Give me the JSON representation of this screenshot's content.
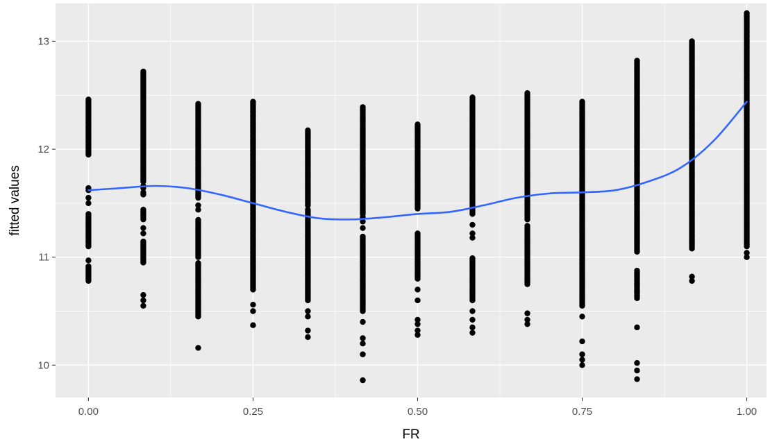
{
  "chart_data": {
    "type": "scatter",
    "xlabel": "FR",
    "ylabel": "fitted values",
    "xlim": [
      -0.05,
      1.03
    ],
    "ylim": [
      9.7,
      13.35
    ],
    "x_ticks": [
      0.0,
      0.25,
      0.5,
      0.75,
      1.0
    ],
    "x_tick_labels": [
      "0.00",
      "0.25",
      "0.50",
      "0.75",
      "1.00"
    ],
    "y_ticks": [
      10,
      11,
      12,
      13
    ],
    "y_tick_labels": [
      "10",
      "11",
      "12",
      "13"
    ],
    "grid": true,
    "background": "#ebebeb",
    "gridline_color": "#ffffff",
    "point_color": "#000000",
    "smooth_color": "#3366ff",
    "columns": [
      {
        "x": 0.0,
        "dense": [
          [
            10.78,
            10.92
          ],
          [
            11.1,
            11.4
          ],
          [
            11.95,
            12.47
          ]
        ],
        "sparse": [
          10.97,
          11.5,
          11.55,
          11.62,
          11.64
        ]
      },
      {
        "x": 0.0833,
        "dense": [
          [
            10.95,
            11.15
          ],
          [
            11.35,
            11.45
          ],
          [
            11.7,
            12.72
          ]
        ],
        "sparse": [
          10.55,
          10.6,
          10.65,
          11.22,
          11.27,
          11.58,
          11.6,
          11.64,
          11.66
        ]
      },
      {
        "x": 0.1667,
        "dense": [
          [
            10.45,
            10.95
          ],
          [
            11.0,
            11.35
          ],
          [
            11.55,
            12.42
          ]
        ],
        "sparse": [
          10.16,
          10.5,
          11.44,
          11.48
        ]
      },
      {
        "x": 0.25,
        "dense": [
          [
            10.7,
            12.45
          ]
        ],
        "sparse": [
          10.37,
          10.5,
          10.56
        ]
      },
      {
        "x": 0.3333,
        "dense": [
          [
            10.6,
            11.45
          ],
          [
            11.5,
            12.18
          ]
        ],
        "sparse": [
          10.26,
          10.32,
          10.45,
          10.5,
          11.48
        ]
      },
      {
        "x": 0.4167,
        "dense": [
          [
            10.5,
            11.2
          ],
          [
            11.4,
            12.4
          ]
        ],
        "sparse": [
          9.86,
          10.1,
          10.2,
          10.25,
          10.4,
          11.27,
          11.33,
          11.37
        ]
      },
      {
        "x": 0.5,
        "dense": [
          [
            10.8,
            11.22
          ],
          [
            11.45,
            12.24
          ]
        ],
        "sparse": [
          10.28,
          10.32,
          10.38,
          10.42,
          10.6,
          10.7
        ]
      },
      {
        "x": 0.5833,
        "dense": [
          [
            10.6,
            11.0
          ],
          [
            11.4,
            12.48
          ]
        ],
        "sparse": [
          10.3,
          10.35,
          10.42,
          10.5,
          11.18,
          11.22,
          11.3
        ]
      },
      {
        "x": 0.6667,
        "dense": [
          [
            10.75,
            11.3
          ],
          [
            11.35,
            12.53
          ]
        ],
        "sparse": [
          10.38,
          10.42,
          10.48
        ]
      },
      {
        "x": 0.75,
        "dense": [
          [
            10.55,
            12.45
          ]
        ],
        "sparse": [
          10.0,
          10.05,
          10.1,
          10.22,
          10.45
        ]
      },
      {
        "x": 0.8333,
        "dense": [
          [
            10.62,
            10.88
          ],
          [
            11.05,
            12.82
          ]
        ],
        "sparse": [
          9.87,
          9.95,
          10.02,
          10.35,
          10.68,
          10.75
        ]
      },
      {
        "x": 0.9167,
        "dense": [
          [
            11.08,
            13.0
          ]
        ],
        "sparse": [
          10.78,
          10.82
        ]
      },
      {
        "x": 1.0,
        "dense": [
          [
            11.1,
            13.27
          ]
        ],
        "sparse": [
          11.0,
          11.04
        ]
      }
    ],
    "smooth": {
      "name": "",
      "x": [
        0.0,
        0.05,
        0.1,
        0.15,
        0.2,
        0.25,
        0.3,
        0.35,
        0.4,
        0.45,
        0.5,
        0.55,
        0.6,
        0.65,
        0.7,
        0.75,
        0.8,
        0.85,
        0.9,
        0.95,
        1.0
      ],
      "y": [
        11.62,
        11.64,
        11.66,
        11.64,
        11.58,
        11.5,
        11.42,
        11.36,
        11.35,
        11.37,
        11.4,
        11.42,
        11.48,
        11.55,
        11.59,
        11.6,
        11.62,
        11.7,
        11.83,
        12.08,
        12.44
      ]
    }
  }
}
